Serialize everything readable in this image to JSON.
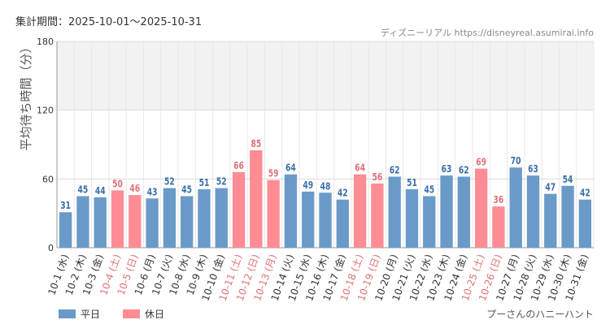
{
  "header": {
    "period": "集計期間：2025-10-01～2025-10-31",
    "source": "ディズニーリアル https://disneyreal.asumirai.info"
  },
  "footer_subtitle": "プーさんのハニーハント",
  "legend": [
    {
      "label": "平日",
      "color": "#6a9ac8"
    },
    {
      "label": "休日",
      "color": "#ff8c94"
    }
  ],
  "chart_data": {
    "type": "bar",
    "ylabel": "平均待ち時間（分）",
    "ylim": [
      0,
      180
    ],
    "yticks": [
      0,
      60,
      120,
      180
    ],
    "grid": true,
    "highlight_band": [
      120,
      180
    ],
    "colors": {
      "weekday": "#6a9ac8",
      "holiday": "#ff8c94",
      "weekday_label": "#3a6fa8",
      "holiday_label": "#e07078"
    },
    "categories": [
      "10-1 (水)",
      "10-2 (木)",
      "10-3 (金)",
      "10-4 (土)",
      "10-5 (日)",
      "10-6 (月)",
      "10-7 (火)",
      "10-8 (水)",
      "10-9 (木)",
      "10-10 (金)",
      "10-11 (土)",
      "10-12 (日)",
      "10-13 (月)",
      "10-14 (火)",
      "10-15 (水)",
      "10-16 (木)",
      "10-17 (金)",
      "10-18 (土)",
      "10-19 (日)",
      "10-20 (月)",
      "10-21 (火)",
      "10-22 (水)",
      "10-23 (木)",
      "10-24 (金)",
      "10-25 (土)",
      "10-26 (日)",
      "10-27 (月)",
      "10-28 (火)",
      "10-29 (水)",
      "10-30 (木)",
      "10-31 (金)"
    ],
    "values": [
      31,
      45,
      44,
      50,
      46,
      43,
      52,
      45,
      51,
      52,
      66,
      85,
      59,
      64,
      49,
      48,
      42,
      64,
      56,
      62,
      51,
      45,
      63,
      62,
      69,
      36,
      70,
      63,
      47,
      54,
      42
    ],
    "holiday": [
      false,
      false,
      false,
      true,
      true,
      false,
      false,
      false,
      false,
      false,
      true,
      true,
      true,
      false,
      false,
      false,
      false,
      true,
      true,
      false,
      false,
      false,
      false,
      false,
      true,
      true,
      false,
      false,
      false,
      false,
      false
    ]
  }
}
